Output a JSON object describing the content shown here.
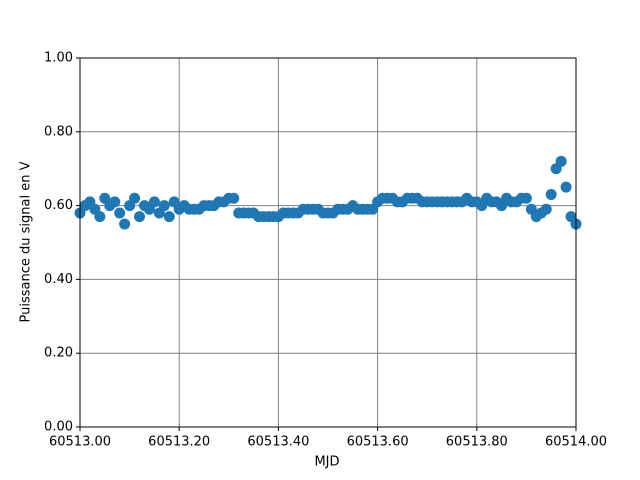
{
  "chart_data": {
    "type": "scatter",
    "xlabel": "MJD",
    "ylabel": "Puissance du signal en V",
    "x": [
      60513,
      60513.01,
      60513.02,
      60513.03,
      60513.04,
      60513.05,
      60513.06,
      60513.07,
      60513.08,
      60513.09,
      60513.1,
      60513.11,
      60513.12,
      60513.13,
      60513.14,
      60513.15,
      60513.16,
      60513.17,
      60513.18,
      60513.19,
      60513.2,
      60513.21,
      60513.22,
      60513.23,
      60513.24,
      60513.25,
      60513.26,
      60513.27,
      60513.28,
      60513.29,
      60513.3,
      60513.31,
      60513.32,
      60513.33,
      60513.34,
      60513.35,
      60513.36,
      60513.37,
      60513.38,
      60513.39,
      60513.4,
      60513.41,
      60513.42,
      60513.43,
      60513.44,
      60513.45,
      60513.46,
      60513.47,
      60513.48,
      60513.49,
      60513.5,
      60513.51,
      60513.52,
      60513.53,
      60513.54,
      60513.55,
      60513.56,
      60513.57,
      60513.58,
      60513.59,
      60513.6,
      60513.61,
      60513.62,
      60513.63,
      60513.64,
      60513.65,
      60513.66,
      60513.67,
      60513.68,
      60513.69,
      60513.7,
      60513.71,
      60513.72,
      60513.73,
      60513.74,
      60513.75,
      60513.76,
      60513.77,
      60513.78,
      60513.79,
      60513.8,
      60513.81,
      60513.82,
      60513.83,
      60513.84,
      60513.85,
      60513.86,
      60513.87,
      60513.88,
      60513.89,
      60513.9,
      60513.91,
      60513.92,
      60513.93,
      60513.94,
      60513.95,
      60513.96,
      60513.97,
      60513.98,
      60513.99,
      60514
    ],
    "series": [
      {
        "color": "#1f77b4",
        "values": [
          0.58,
          0.6,
          0.61,
          0.59,
          0.57,
          0.62,
          0.6,
          0.61,
          0.58,
          0.55,
          0.6,
          0.62,
          0.57,
          0.6,
          0.59,
          0.61,
          0.58,
          0.6,
          0.57,
          0.61,
          0.59,
          0.6,
          0.59,
          0.59,
          0.59,
          0.6,
          0.6,
          0.6,
          0.61,
          0.61,
          0.62,
          0.62,
          0.58,
          0.58,
          0.58,
          0.58,
          0.57,
          0.57,
          0.57,
          0.57,
          0.57,
          0.58,
          0.58,
          0.58,
          0.58,
          0.59,
          0.59,
          0.59,
          0.59,
          0.58,
          0.58,
          0.58,
          0.59,
          0.59,
          0.59,
          0.6,
          0.59,
          0.59,
          0.59,
          0.59,
          0.61,
          0.62,
          0.62,
          0.62,
          0.61,
          0.61,
          0.62,
          0.62,
          0.62,
          0.61,
          0.61,
          0.61,
          0.61,
          0.61,
          0.61,
          0.61,
          0.61,
          0.61,
          0.62,
          0.61,
          0.61,
          0.6,
          0.62,
          0.61,
          0.61,
          0.6,
          0.62,
          0.61,
          0.61,
          0.62,
          0.62,
          0.59,
          0.57,
          0.58,
          0.59,
          0.63,
          0.7,
          0.72,
          0.65,
          0.57,
          0.55
        ]
      }
    ],
    "xlim": [
      60513,
      60514
    ],
    "xticks": [
      {
        "value": 60513,
        "label": "60513.00"
      },
      {
        "value": 60513.2,
        "label": "60513.20"
      },
      {
        "value": 60513.4,
        "label": "60513.40"
      },
      {
        "value": 60513.6,
        "label": "60513.60"
      },
      {
        "value": 60513.8,
        "label": "60513.80"
      },
      {
        "value": 60514,
        "label": "60514.00"
      }
    ],
    "ylim": [
      0,
      1
    ],
    "yticks": [
      {
        "value": 0,
        "label": "0.00"
      },
      {
        "value": 0.2,
        "label": "0.20"
      },
      {
        "value": 0.4,
        "label": "0.40"
      },
      {
        "value": 0.6,
        "label": "0.60"
      },
      {
        "value": 0.8,
        "label": "0.80"
      },
      {
        "value": 1,
        "label": "1.00"
      }
    ],
    "grid": true
  }
}
